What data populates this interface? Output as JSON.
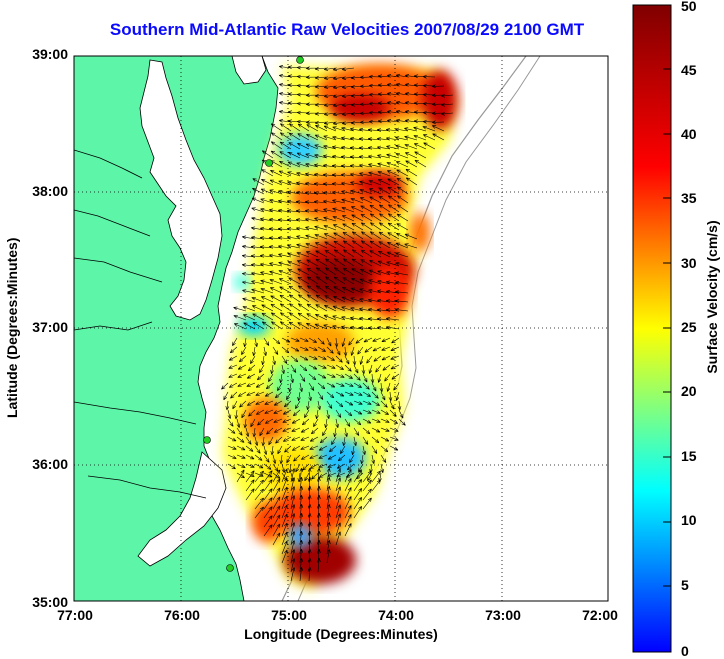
{
  "title": "Southern Mid-Atlantic Raw Velocities 2007/08/29 2100 GMT",
  "xaxis": {
    "label": "Longitude (Degrees:Minutes)",
    "ticks": [
      "77:00",
      "76:00",
      "75:00",
      "74:00",
      "73:00",
      "72:00"
    ],
    "range": [
      -77,
      -72
    ]
  },
  "yaxis": {
    "label": "Latitude (Degrees:Minutes)",
    "ticks": [
      "39:00",
      "38:00",
      "37:00",
      "36:00",
      "35:00"
    ],
    "range": [
      35,
      39
    ]
  },
  "colorbar": {
    "label": "Surface Velocity (cm/s)",
    "ticks": [
      "50",
      "45",
      "40",
      "35",
      "30",
      "25",
      "20",
      "15",
      "10",
      "5",
      "0"
    ],
    "range": [
      0,
      50
    ],
    "colormap": "jet"
  },
  "colors": {
    "land": "#5df5a8",
    "title": "#0a0aff",
    "station": "#22cc22",
    "grid": "#000000"
  },
  "grid": "dotted",
  "vector_color": "#000000"
}
